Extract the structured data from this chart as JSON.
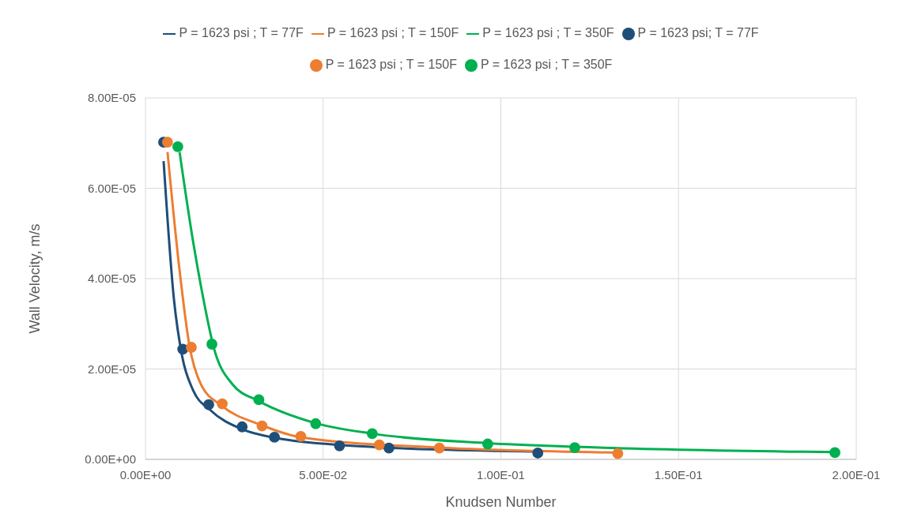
{
  "chart_data": {
    "type": "scatter",
    "xlabel": "Knudsen Number",
    "ylabel": "Wall Velocity, m/s",
    "xlim": [
      0,
      0.2
    ],
    "xticks": [
      {
        "value": 0,
        "label": "0.00E+00"
      },
      {
        "value": 0.05,
        "label": "5.00E-02"
      },
      {
        "value": 0.1,
        "label": "1.00E-01"
      },
      {
        "value": 0.15,
        "label": "1.50E-01"
      },
      {
        "value": 0.2,
        "label": "2.00E-01"
      }
    ],
    "ylim": [
      0,
      8e-05
    ],
    "yticks": [
      {
        "value": 0,
        "label": "0.00E+00"
      },
      {
        "value": 2e-05,
        "label": "2.00E-05"
      },
      {
        "value": 4e-05,
        "label": "4.00E-05"
      },
      {
        "value": 6e-05,
        "label": "6.00E-05"
      },
      {
        "value": 8e-05,
        "label": "8.00E-05"
      }
    ],
    "grid": true,
    "legend": "top",
    "marker": "circle",
    "series": [
      {
        "name": "P = 1623 psi ; T = 77F",
        "type": "line",
        "marker": "none",
        "color": "#1f4e79",
        "x": [
          0.0051,
          0.008,
          0.0103,
          0.0134,
          0.0181,
          0.0274,
          0.037,
          0.0546,
          0.1104
        ],
        "values": [
          6.6e-05,
          3.55e-05,
          2.29e-05,
          1.53e-05,
          1.1e-05,
          6.6e-06,
          4.7e-06,
          3.2e-06,
          1.7e-06
        ]
      },
      {
        "name": "P = 1623 psi ; T = 150F",
        "type": "line",
        "marker": "none",
        "color": "#ed7d31",
        "x": [
          0.0062,
          0.0096,
          0.0123,
          0.0156,
          0.0214,
          0.0326,
          0.0437,
          0.0827,
          0.1329
        ],
        "values": [
          6.8e-05,
          4.18e-05,
          2.55e-05,
          1.66e-05,
          1.19e-05,
          7.6e-06,
          4.9e-06,
          2.6e-06,
          1.5e-06
        ]
      },
      {
        "name": "P = 1623 psi ; T = 350F",
        "type": "line",
        "marker": "none",
        "color": "#00b050",
        "x": [
          0.0096,
          0.0134,
          0.0163,
          0.0192,
          0.0245,
          0.0319,
          0.0475,
          0.0638,
          0.0963,
          0.1208,
          0.194
        ],
        "values": [
          6.8e-05,
          4.82e-05,
          3.55e-05,
          2.48e-05,
          1.66e-05,
          1.29e-05,
          8.1e-06,
          5.7e-06,
          3.6e-06,
          2.8e-06,
          1.6e-06
        ]
      },
      {
        "name": "P = 1623 psi; T = 77F",
        "color": "#1f4e79",
        "x": [
          0.0051,
          0.0105,
          0.0178,
          0.0272,
          0.0363,
          0.0546,
          0.0685,
          0.1104
        ],
        "values": [
          7.02e-05,
          2.44e-05,
          1.21e-05,
          7.2e-06,
          4.9e-06,
          3e-06,
          2.5e-06,
          1.4e-06
        ]
      },
      {
        "name": "P = 1623 psi ; T = 150F",
        "color": "#ed7d31",
        "x": [
          0.0062,
          0.0129,
          0.0216,
          0.0328,
          0.0437,
          0.0658,
          0.0827,
          0.1329
        ],
        "values": [
          7.02e-05,
          2.48e-05,
          1.23e-05,
          7.4e-06,
          5.1e-06,
          3.2e-06,
          2.5e-06,
          1.3e-06
        ]
      },
      {
        "name": "P = 1623 psi ; T = 350F",
        "color": "#00b050",
        "x": [
          0.0091,
          0.0187,
          0.0319,
          0.0479,
          0.0638,
          0.0963,
          0.1208,
          0.194
        ],
        "values": [
          6.92e-05,
          2.55e-05,
          1.32e-05,
          7.9e-06,
          5.7e-06,
          3.4e-06,
          2.6e-06,
          1.5e-06
        ]
      }
    ]
  }
}
